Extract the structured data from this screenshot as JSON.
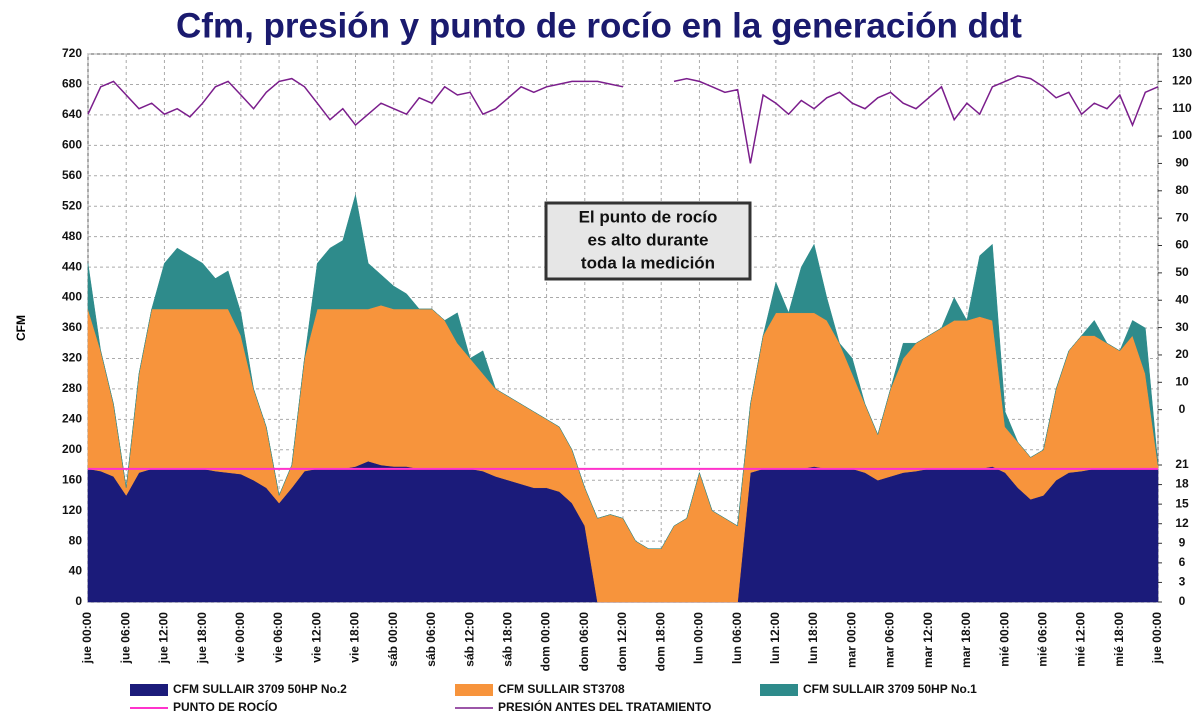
{
  "chart_data": {
    "type": "stacked-area",
    "title": "Cfm, presión y punto de rocío en la generación ddt",
    "y_label": "CFM",
    "annotation": [
      "El punto de rocío",
      "es alto durante",
      "toda la medición"
    ],
    "x": [
      0,
      2,
      4,
      6,
      8,
      10,
      12,
      14,
      16,
      18,
      20,
      22,
      24,
      26,
      28,
      30,
      32,
      34,
      36,
      38,
      40,
      42,
      44,
      46,
      48,
      50,
      52,
      54,
      56,
      58,
      60,
      62,
      64,
      66,
      68,
      70,
      72,
      74,
      76,
      78,
      80,
      82,
      84,
      86,
      88,
      90,
      92,
      94,
      96,
      98,
      100,
      102,
      104,
      106,
      108,
      110,
      112,
      114,
      116,
      118,
      120,
      122,
      124,
      126,
      128,
      130,
      132,
      134,
      136,
      138,
      140,
      142,
      144,
      146,
      148,
      150,
      152,
      154,
      156,
      158,
      160,
      162,
      164,
      166,
      168
    ],
    "xlim": [
      0,
      168
    ],
    "xticks": [
      {
        "value": 0,
        "label": "jue 00:00"
      },
      {
        "value": 6,
        "label": "jue 06:00"
      },
      {
        "value": 12,
        "label": "jue 12:00"
      },
      {
        "value": 18,
        "label": "jue 18:00"
      },
      {
        "value": 24,
        "label": "vie 00:00"
      },
      {
        "value": 30,
        "label": "vie 06:00"
      },
      {
        "value": 36,
        "label": "vie 12:00"
      },
      {
        "value": 42,
        "label": "vie 18:00"
      },
      {
        "value": 48,
        "label": "sáb 00:00"
      },
      {
        "value": 54,
        "label": "sáb 06:00"
      },
      {
        "value": 60,
        "label": "sáb 12:00"
      },
      {
        "value": 66,
        "label": "sáb 18:00"
      },
      {
        "value": 72,
        "label": "dom 00:00"
      },
      {
        "value": 78,
        "label": "dom 06:00"
      },
      {
        "value": 84,
        "label": "dom 12:00"
      },
      {
        "value": 90,
        "label": "dom 18:00"
      },
      {
        "value": 96,
        "label": "lun 00:00"
      },
      {
        "value": 102,
        "label": "lun 06:00"
      },
      {
        "value": 108,
        "label": "lun 12:00"
      },
      {
        "value": 114,
        "label": "lun 18:00"
      },
      {
        "value": 120,
        "label": "mar 00:00"
      },
      {
        "value": 126,
        "label": "mar 06:00"
      },
      {
        "value": 132,
        "label": "mar 12:00"
      },
      {
        "value": 138,
        "label": "mar 18:00"
      },
      {
        "value": 144,
        "label": "mié 00:00"
      },
      {
        "value": 150,
        "label": "mié 06:00"
      },
      {
        "value": 156,
        "label": "mié 12:00"
      },
      {
        "value": 162,
        "label": "mié 18:00"
      },
      {
        "value": 168,
        "label": "jue 00:00"
      }
    ],
    "ylim": [
      0,
      720
    ],
    "yticks": [
      0,
      40,
      80,
      120,
      160,
      200,
      240,
      280,
      320,
      360,
      400,
      440,
      480,
      520,
      560,
      600,
      640,
      680,
      720
    ],
    "y2lim": [
      -70.3,
      130
    ],
    "y2ticks": [
      0,
      10,
      20,
      30,
      40,
      50,
      60,
      70,
      80,
      90,
      100,
      110,
      120,
      130
    ],
    "y3lim": [
      0,
      84
    ],
    "y3ticks": [
      0,
      3,
      6,
      9,
      12,
      15,
      18,
      21
    ],
    "grid": true,
    "series": [
      {
        "name": "CFM SULLAIR 3709 50HP No.2",
        "color": "#1b1b7a",
        "stack": true,
        "values": [
          175,
          172,
          165,
          140,
          170,
          175,
          175,
          175,
          175,
          175,
          172,
          170,
          168,
          160,
          150,
          130,
          150,
          172,
          175,
          175,
          175,
          178,
          185,
          180,
          178,
          178,
          175,
          175,
          175,
          175,
          175,
          172,
          165,
          160,
          155,
          150,
          150,
          145,
          130,
          100,
          0,
          0,
          0,
          0,
          0,
          0,
          0,
          0,
          0,
          0,
          0,
          0,
          170,
          175,
          175,
          175,
          175,
          178,
          175,
          175,
          175,
          170,
          160,
          165,
          170,
          172,
          175,
          175,
          175,
          175,
          175,
          178,
          170,
          150,
          135,
          140,
          160,
          170,
          172,
          175,
          175,
          175,
          175,
          175,
          175
        ]
      },
      {
        "name": "CFM SULLAIR ST3708",
        "color": "#f7943c",
        "stack": true,
        "values": [
          210,
          158,
          95,
          10,
          130,
          210,
          210,
          210,
          210,
          210,
          213,
          215,
          182,
          120,
          80,
          10,
          30,
          148,
          210,
          210,
          210,
          207,
          200,
          210,
          207,
          207,
          210,
          210,
          195,
          165,
          145,
          128,
          115,
          110,
          105,
          100,
          90,
          85,
          70,
          50,
          110,
          115,
          110,
          80,
          70,
          70,
          100,
          110,
          170,
          120,
          110,
          100,
          90,
          175,
          205,
          205,
          205,
          202,
          195,
          165,
          125,
          90,
          60,
          115,
          150,
          168,
          175,
          185,
          195,
          195,
          200,
          192,
          60,
          60,
          55,
          60,
          120,
          160,
          178,
          175,
          165,
          155,
          175,
          125,
          5
        ]
      },
      {
        "name": "CFM SULLAIR 3709 50HP No.1",
        "color": "#2e8b8b",
        "stack": true,
        "values": [
          60,
          0,
          0,
          0,
          0,
          0,
          60,
          80,
          70,
          60,
          40,
          50,
          30,
          0,
          0,
          0,
          0,
          0,
          60,
          80,
          90,
          150,
          60,
          40,
          30,
          20,
          0,
          0,
          0,
          40,
          0,
          30,
          0,
          0,
          0,
          0,
          0,
          0,
          0,
          0,
          0,
          0,
          0,
          0,
          0,
          0,
          0,
          0,
          0,
          0,
          0,
          0,
          0,
          0,
          40,
          0,
          60,
          90,
          30,
          0,
          20,
          0,
          0,
          0,
          20,
          0,
          0,
          0,
          30,
          0,
          80,
          100,
          20,
          0,
          0,
          0,
          0,
          0,
          0,
          20,
          0,
          0,
          20,
          60,
          0
        ]
      },
      {
        "name": "PUNTO DE ROCÍO",
        "color": "#ff33cc",
        "axis": "y3",
        "values": [
          20.4,
          20.4,
          20.4,
          20.4,
          20.4,
          20.4,
          20.4,
          20.4,
          20.4,
          20.4,
          20.4,
          20.4,
          20.4,
          20.4,
          20.4,
          20.4,
          20.4,
          20.4,
          20.4,
          20.4,
          20.4,
          20.4,
          20.4,
          20.4,
          20.4,
          20.4,
          20.4,
          20.4,
          20.4,
          20.4,
          20.4,
          20.4,
          20.4,
          20.4,
          20.4,
          20.4,
          20.4,
          20.4,
          20.4,
          20.4,
          20.4,
          20.4,
          20.4,
          20.4,
          20.4,
          20.4,
          20.4,
          20.4,
          20.4,
          20.4,
          20.4,
          20.4,
          20.4,
          20.4,
          20.4,
          20.4,
          20.4,
          20.4,
          20.4,
          20.4,
          20.4,
          20.4,
          20.4,
          20.4,
          20.4,
          20.4,
          20.4,
          20.4,
          20.4,
          20.4,
          20.4,
          20.4,
          20.4,
          20.4,
          20.4,
          20.4,
          20.4,
          20.4,
          20.4,
          20.4,
          20.4,
          20.4,
          20.4,
          20.4,
          20.4
        ]
      },
      {
        "name": "PRESIÓN ANTES DEL TRATAMIENTO",
        "color": "#7b1e8c",
        "axis": "y2",
        "values": [
          108,
          118,
          120,
          115,
          110,
          112,
          108,
          110,
          107,
          112,
          118,
          120,
          115,
          110,
          116,
          120,
          121,
          118,
          112,
          106,
          110,
          104,
          108,
          112,
          110,
          108,
          114,
          112,
          118,
          115,
          116,
          108,
          110,
          114,
          118,
          116,
          118,
          119,
          120,
          120,
          120,
          119,
          118,
          null,
          null,
          null,
          120,
          121,
          120,
          118,
          116,
          117,
          90,
          115,
          112,
          108,
          113,
          110,
          114,
          116,
          112,
          110,
          114,
          116,
          112,
          110,
          114,
          118,
          106,
          112,
          108,
          118,
          120,
          122,
          121,
          118,
          114,
          116,
          108,
          112,
          110,
          115,
          104,
          116,
          118
        ]
      }
    ]
  }
}
